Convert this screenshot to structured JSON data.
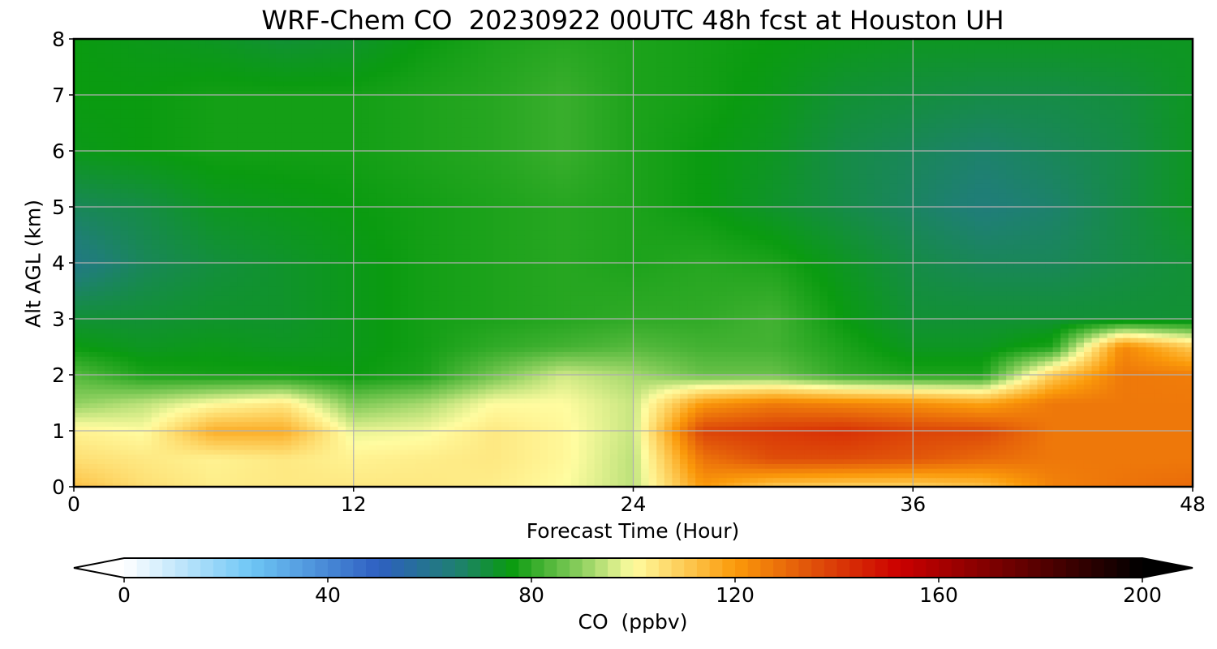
{
  "chart_data": {
    "type": "heatmap",
    "title": "WRF-Chem CO  20230922 00UTC 48h fcst at Houston UH",
    "xlabel": "Forecast Time (Hour)",
    "ylabel": "Alt AGL (km)",
    "xlim": [
      0,
      48
    ],
    "ylim": [
      0,
      8
    ],
    "xticks": [
      {
        "value": 0,
        "label": "0"
      },
      {
        "value": 12,
        "label": "12"
      },
      {
        "value": 24,
        "label": "24"
      },
      {
        "value": 36,
        "label": "36"
      },
      {
        "value": 48,
        "label": "48"
      }
    ],
    "yticks": [
      {
        "value": 0,
        "label": "0"
      },
      {
        "value": 1,
        "label": "1"
      },
      {
        "value": 2,
        "label": "2"
      },
      {
        "value": 3,
        "label": "3"
      },
      {
        "value": 4,
        "label": "4"
      },
      {
        "value": 5,
        "label": "5"
      },
      {
        "value": 6,
        "label": "6"
      },
      {
        "value": 7,
        "label": "7"
      },
      {
        "value": 8,
        "label": "8"
      }
    ],
    "grid": true,
    "x": [
      0,
      3,
      6,
      9,
      12,
      15,
      18,
      21,
      24,
      27,
      30,
      33,
      36,
      39,
      42,
      45,
      48
    ],
    "y": [
      0,
      0.5,
      1,
      1.5,
      2,
      2.5,
      3,
      4,
      5,
      6,
      7,
      8
    ],
    "z": [
      [
        112,
        106,
        103,
        104,
        104,
        104,
        103,
        100,
        94,
        120,
        110,
        108,
        108,
        112,
        125,
        128,
        130
      ],
      [
        106,
        104,
        102,
        104,
        102,
        103,
        104,
        101,
        94,
        128,
        136,
        136,
        134,
        130,
        127,
        127,
        127
      ],
      [
        102,
        100,
        116,
        116,
        98,
        99,
        104,
        101,
        95,
        138,
        140,
        142,
        138,
        137,
        127,
        127,
        127
      ],
      [
        90,
        94,
        100,
        104,
        88,
        92,
        100,
        100,
        95,
        120,
        126,
        124,
        122,
        118,
        127,
        127,
        127
      ],
      [
        84,
        78,
        77,
        77,
        76,
        78,
        87,
        96,
        92,
        86,
        86,
        80,
        78,
        78,
        110,
        127,
        126
      ],
      [
        76,
        74,
        75,
        74,
        75,
        77,
        80,
        82,
        84,
        82,
        82,
        78,
        74,
        74,
        78,
        124,
        110
      ],
      [
        72,
        72,
        73,
        73,
        75,
        77,
        78,
        79,
        80,
        80,
        82,
        76,
        72,
        72,
        72,
        72,
        72
      ],
      [
        62,
        68,
        71,
        73,
        75,
        77,
        78,
        79,
        78,
        79,
        78,
        74,
        70,
        68,
        68,
        70,
        72
      ],
      [
        68,
        70,
        74,
        75,
        76,
        77,
        78,
        79,
        78,
        76,
        73,
        70,
        67,
        64,
        66,
        70,
        74
      ],
      [
        75,
        76,
        77,
        77,
        77,
        78,
        79,
        81,
        78,
        76,
        74,
        70,
        68,
        66,
        68,
        70,
        74
      ],
      [
        76,
        76,
        77,
        77,
        77,
        78,
        79,
        81,
        78,
        77,
        75,
        72,
        71,
        70,
        70,
        71,
        74
      ],
      [
        76,
        75,
        74,
        72,
        73,
        76,
        78,
        79,
        78,
        77,
        76,
        75,
        74,
        74,
        74,
        74,
        74
      ]
    ],
    "colorbar": {
      "label": "CO  (ppbv)",
      "min": 0,
      "max": 200,
      "extend": "both",
      "ticks": [
        {
          "value": 0,
          "label": "0"
        },
        {
          "value": 40,
          "label": "40"
        },
        {
          "value": 80,
          "label": "80"
        },
        {
          "value": 120,
          "label": "120"
        },
        {
          "value": 160,
          "label": "160"
        },
        {
          "value": 200,
          "label": "200"
        }
      ],
      "stops": [
        {
          "value": 0,
          "color": "#ffffff"
        },
        {
          "value": 25,
          "color": "#6ec6f5"
        },
        {
          "value": 50,
          "color": "#2e5fc1"
        },
        {
          "value": 65,
          "color": "#1f7f74"
        },
        {
          "value": 76,
          "color": "#0a9b10"
        },
        {
          "value": 90,
          "color": "#8fd060"
        },
        {
          "value": 100,
          "color": "#fffca0"
        },
        {
          "value": 120,
          "color": "#fb9a0a"
        },
        {
          "value": 135,
          "color": "#e0520a"
        },
        {
          "value": 152,
          "color": "#cc0000"
        },
        {
          "value": 175,
          "color": "#6a0000"
        },
        {
          "value": 200,
          "color": "#000000"
        }
      ]
    }
  }
}
